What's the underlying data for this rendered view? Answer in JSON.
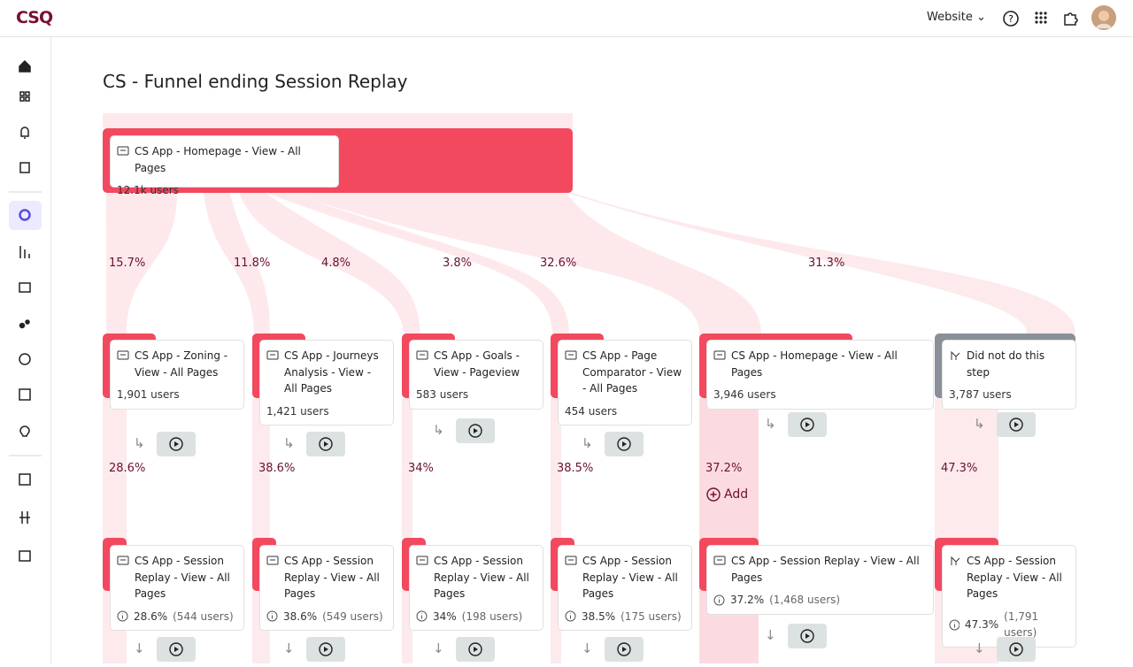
{
  "header": {
    "logo": "CSQ",
    "workspace": "Website"
  },
  "page": {
    "title": "CS - Funnel ending Session Replay"
  },
  "root": {
    "label": "CS App - Homepage - View - All Pages",
    "users": "12.1k users"
  },
  "step1_rates": [
    "15.7%",
    "11.8%",
    "4.8%",
    "3.8%",
    "32.6%",
    "31.3%"
  ],
  "add_label": "Add",
  "columns": [
    {
      "step1": {
        "label": "CS App - Zoning - View - All Pages",
        "users": "1,901 users"
      },
      "rate": "28.6%",
      "step2": {
        "label": "CS App - Session Replay - View - All Pages",
        "rate": "28.6%",
        "users": "(544 users)"
      }
    },
    {
      "step1": {
        "label": "CS App - Journeys Analysis - View - All Pages",
        "users": "1,421 users"
      },
      "rate": "38.6%",
      "step2": {
        "label": "CS App - Session Replay - View - All Pages",
        "rate": "38.6%",
        "users": "(549 users)"
      }
    },
    {
      "step1": {
        "label": "CS App - Goals - View - Pageview",
        "users": "583 users"
      },
      "rate": "34%",
      "step2": {
        "label": "CS App - Session Replay - View - All Pages",
        "rate": "34%",
        "users": "(198 users)"
      }
    },
    {
      "step1": {
        "label": "CS App - Page Comparator - View - All Pages",
        "users": "454 users"
      },
      "rate": "38.5%",
      "step2": {
        "label": "CS App - Session Replay - View - All Pages",
        "rate": "38.5%",
        "users": "(175 users)"
      }
    },
    {
      "step1": {
        "label": "CS App - Homepage - View - All Pages",
        "users": "3,946 users"
      },
      "rate": "37.2%",
      "step2": {
        "label": "CS App - Session Replay - View - All Pages",
        "rate": "37.2%",
        "users": "(1,468 users)"
      }
    },
    {
      "step1": {
        "label": "Did not do this step",
        "users": "3,787 users"
      },
      "rate": "47.3%",
      "step2": {
        "label": "CS App - Session Replay - View - All Pages",
        "rate": "47.3%",
        "users": "(1,791 users)"
      }
    }
  ]
}
